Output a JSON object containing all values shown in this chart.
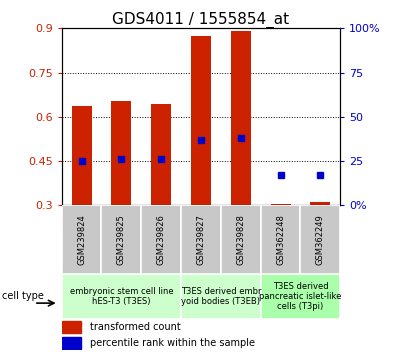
{
  "title": "GDS4011 / 1555854_at",
  "samples": [
    "GSM239824",
    "GSM239825",
    "GSM239826",
    "GSM239827",
    "GSM239828",
    "GSM362248",
    "GSM362249"
  ],
  "transformed_counts": [
    0.635,
    0.655,
    0.645,
    0.875,
    0.89,
    0.305,
    0.31
  ],
  "percentile_ranks_pct": [
    25,
    26,
    26,
    37,
    38,
    17,
    17
  ],
  "ylim_left": [
    0.3,
    0.9
  ],
  "ylim_right": [
    0,
    100
  ],
  "yticks_left": [
    0.3,
    0.45,
    0.6,
    0.75,
    0.9
  ],
  "yticks_right": [
    0,
    25,
    50,
    75,
    100
  ],
  "ytick_labels_left": [
    "0.3",
    "0.45",
    "0.6",
    "0.75",
    "0.9"
  ],
  "ytick_labels_right": [
    "0%",
    "25",
    "50",
    "75",
    "100%"
  ],
  "bar_color": "#cc2200",
  "dot_color": "#0000cc",
  "bar_width": 0.5,
  "cell_type_groups": [
    {
      "label": "embryonic stem cell line\nhES-T3 (T3ES)",
      "start": 0,
      "end": 3,
      "color": "#ccffcc"
    },
    {
      "label": "T3ES derived embr\nyoid bodies (T3EB)",
      "start": 3,
      "end": 5,
      "color": "#ccffcc"
    },
    {
      "label": "T3ES derived\npancreatic islet-like\ncells (T3pi)",
      "start": 5,
      "end": 7,
      "color": "#aaffaa"
    }
  ],
  "legend_items": [
    {
      "label": "transformed count",
      "color": "#cc2200"
    },
    {
      "label": "percentile rank within the sample",
      "color": "#0000cc"
    }
  ],
  "cell_type_label": "cell type",
  "tick_label_color_left": "#cc2200",
  "tick_label_color_right": "#0000cc",
  "title_fontsize": 11,
  "tick_fontsize": 8,
  "sample_fontsize": 6,
  "group_fontsize": 6
}
